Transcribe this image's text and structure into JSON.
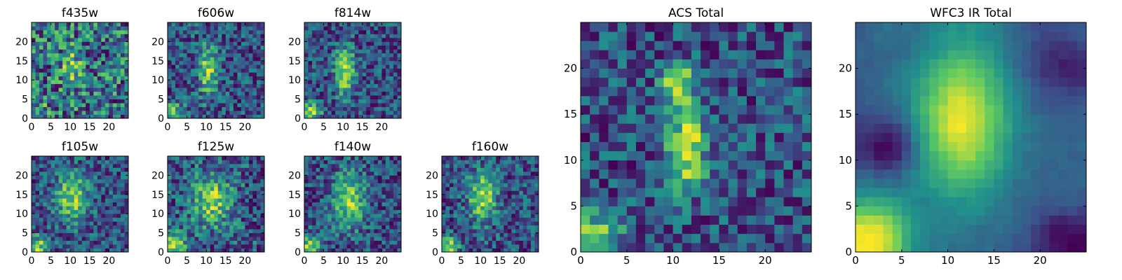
{
  "figure": {
    "colormap": [
      "#440154",
      "#3b528b",
      "#21918c",
      "#5ec962",
      "#fde725"
    ]
  },
  "chart_data": [
    {
      "type": "heatmap",
      "title": "f435w",
      "grid": false,
      "xticks": [
        "0",
        "5",
        "10",
        "15",
        "20"
      ],
      "yticks": [
        "0",
        "5",
        "10",
        "15",
        "20"
      ],
      "xlim": [
        0,
        25
      ],
      "ylim": [
        0,
        25
      ],
      "seed": 11,
      "cols": 25,
      "rows": 25,
      "noise": 0.55,
      "base": 0.62,
      "blobs": [
        {
          "x": 10,
          "y": 13,
          "sx": 2.0,
          "sy": 4.0,
          "a": 0.25
        },
        {
          "x": 1,
          "y": 1,
          "sx": 2,
          "sy": 2,
          "a": 0.2
        }
      ]
    },
    {
      "type": "heatmap",
      "title": "f606w",
      "grid": false,
      "xticks": [
        "0",
        "5",
        "10",
        "15",
        "20"
      ],
      "yticks": [
        "0",
        "5",
        "10",
        "15",
        "20"
      ],
      "xlim": [
        0,
        25
      ],
      "ylim": [
        0,
        25
      ],
      "seed": 23,
      "cols": 25,
      "rows": 25,
      "noise": 0.45,
      "base": 0.38,
      "blobs": [
        {
          "x": 10,
          "y": 12,
          "sx": 1.8,
          "sy": 4.5,
          "a": 0.55
        },
        {
          "x": 1,
          "y": 1,
          "sx": 2,
          "sy": 2,
          "a": 0.45
        }
      ]
    },
    {
      "type": "heatmap",
      "title": "f814w",
      "grid": false,
      "xticks": [
        "0",
        "5",
        "10",
        "15",
        "20"
      ],
      "yticks": [
        "0",
        "5",
        "10",
        "15",
        "20"
      ],
      "xlim": [
        0,
        25
      ],
      "ylim": [
        0,
        25
      ],
      "seed": 37,
      "cols": 25,
      "rows": 25,
      "noise": 0.42,
      "base": 0.38,
      "blobs": [
        {
          "x": 10,
          "y": 12,
          "sx": 1.8,
          "sy": 4.5,
          "a": 0.6
        },
        {
          "x": 1,
          "y": 1,
          "sx": 2,
          "sy": 2,
          "a": 0.55
        }
      ]
    },
    {
      "type": "heatmap",
      "title": "f105w",
      "grid": false,
      "xticks": [
        "0",
        "5",
        "10",
        "15",
        "20"
      ],
      "yticks": [
        "0",
        "5",
        "10",
        "15",
        "20"
      ],
      "xlim": [
        0,
        25
      ],
      "ylim": [
        0,
        25
      ],
      "seed": 41,
      "cols": 25,
      "rows": 25,
      "noise": 0.38,
      "base": 0.42,
      "blobs": [
        {
          "x": 10,
          "y": 14,
          "sx": 3,
          "sy": 4.5,
          "a": 0.5
        },
        {
          "x": 1,
          "y": 1,
          "sx": 2,
          "sy": 2,
          "a": 0.5
        }
      ]
    },
    {
      "type": "heatmap",
      "title": "f125w",
      "grid": false,
      "xticks": [
        "0",
        "5",
        "10",
        "15",
        "20"
      ],
      "yticks": [
        "0",
        "5",
        "10",
        "15",
        "20"
      ],
      "xlim": [
        0,
        25
      ],
      "ylim": [
        0,
        25
      ],
      "seed": 53,
      "cols": 25,
      "rows": 25,
      "noise": 0.42,
      "base": 0.5,
      "blobs": [
        {
          "x": 11,
          "y": 13,
          "sx": 3.5,
          "sy": 5,
          "a": 0.45
        },
        {
          "x": 1,
          "y": 1,
          "sx": 2.5,
          "sy": 2.5,
          "a": 0.5
        }
      ]
    },
    {
      "type": "heatmap",
      "title": "f140w",
      "grid": false,
      "xticks": [
        "0",
        "5",
        "10",
        "15",
        "20"
      ],
      "yticks": [
        "0",
        "5",
        "10",
        "15",
        "20"
      ],
      "xlim": [
        0,
        25
      ],
      "ylim": [
        0,
        25
      ],
      "seed": 67,
      "cols": 25,
      "rows": 25,
      "noise": 0.38,
      "base": 0.48,
      "blobs": [
        {
          "x": 11,
          "y": 13,
          "sx": 3,
          "sy": 5,
          "a": 0.5
        },
        {
          "x": 1,
          "y": 1,
          "sx": 2,
          "sy": 2,
          "a": 0.55
        }
      ]
    },
    {
      "type": "heatmap",
      "title": "f160w",
      "grid": false,
      "xticks": [
        "0",
        "5",
        "10",
        "15",
        "20"
      ],
      "yticks": [
        "0",
        "5",
        "10",
        "15",
        "20"
      ],
      "xlim": [
        0,
        25
      ],
      "ylim": [
        0,
        25
      ],
      "seed": 79,
      "cols": 25,
      "rows": 25,
      "noise": 0.4,
      "base": 0.42,
      "blobs": [
        {
          "x": 10,
          "y": 14,
          "sx": 2.5,
          "sy": 4.5,
          "a": 0.55
        },
        {
          "x": 1,
          "y": 1,
          "sx": 2,
          "sy": 2,
          "a": 0.55
        }
      ]
    },
    {
      "type": "heatmap",
      "title": "ACS Total",
      "grid": false,
      "xticks": [
        "0",
        "5",
        "10",
        "15",
        "20"
      ],
      "yticks": [
        "0",
        "5",
        "10",
        "15",
        "20"
      ],
      "xlim": [
        0,
        25
      ],
      "ylim": [
        0,
        25
      ],
      "seed": 97,
      "cols": 25,
      "rows": 25,
      "noise": 0.32,
      "base": 0.46,
      "blobs": [
        {
          "x": 10,
          "y": 18,
          "sx": 1.3,
          "sy": 1.3,
          "a": 0.5
        },
        {
          "x": 11,
          "y": 11,
          "sx": 1.4,
          "sy": 3.2,
          "a": 0.55
        },
        {
          "x": 1,
          "y": 1,
          "sx": 2,
          "sy": 1.8,
          "a": 0.5
        }
      ]
    },
    {
      "type": "heatmap",
      "title": "WFC3 IR Total",
      "grid": false,
      "xticks": [
        "0",
        "5",
        "10",
        "15",
        "20"
      ],
      "yticks": [
        "0",
        "5",
        "10",
        "15",
        "20"
      ],
      "xlim": [
        0,
        25
      ],
      "ylim": [
        0,
        25
      ],
      "seed": 113,
      "cols": 25,
      "rows": 25,
      "noise": 0.1,
      "base": 0.32,
      "blobs": [
        {
          "x": 11,
          "y": 14,
          "sx": 3.5,
          "sy": 6,
          "a": 0.6
        },
        {
          "x": 1,
          "y": 1,
          "sx": 3,
          "sy": 3,
          "a": 0.65
        },
        {
          "x": 3,
          "y": 11,
          "sx": 2,
          "sy": 2,
          "a": -0.35
        },
        {
          "x": 23,
          "y": 1,
          "sx": 3,
          "sy": 2,
          "a": -0.28
        },
        {
          "x": 22,
          "y": 20,
          "sx": 3,
          "sy": 2.5,
          "a": -0.2
        }
      ]
    }
  ]
}
